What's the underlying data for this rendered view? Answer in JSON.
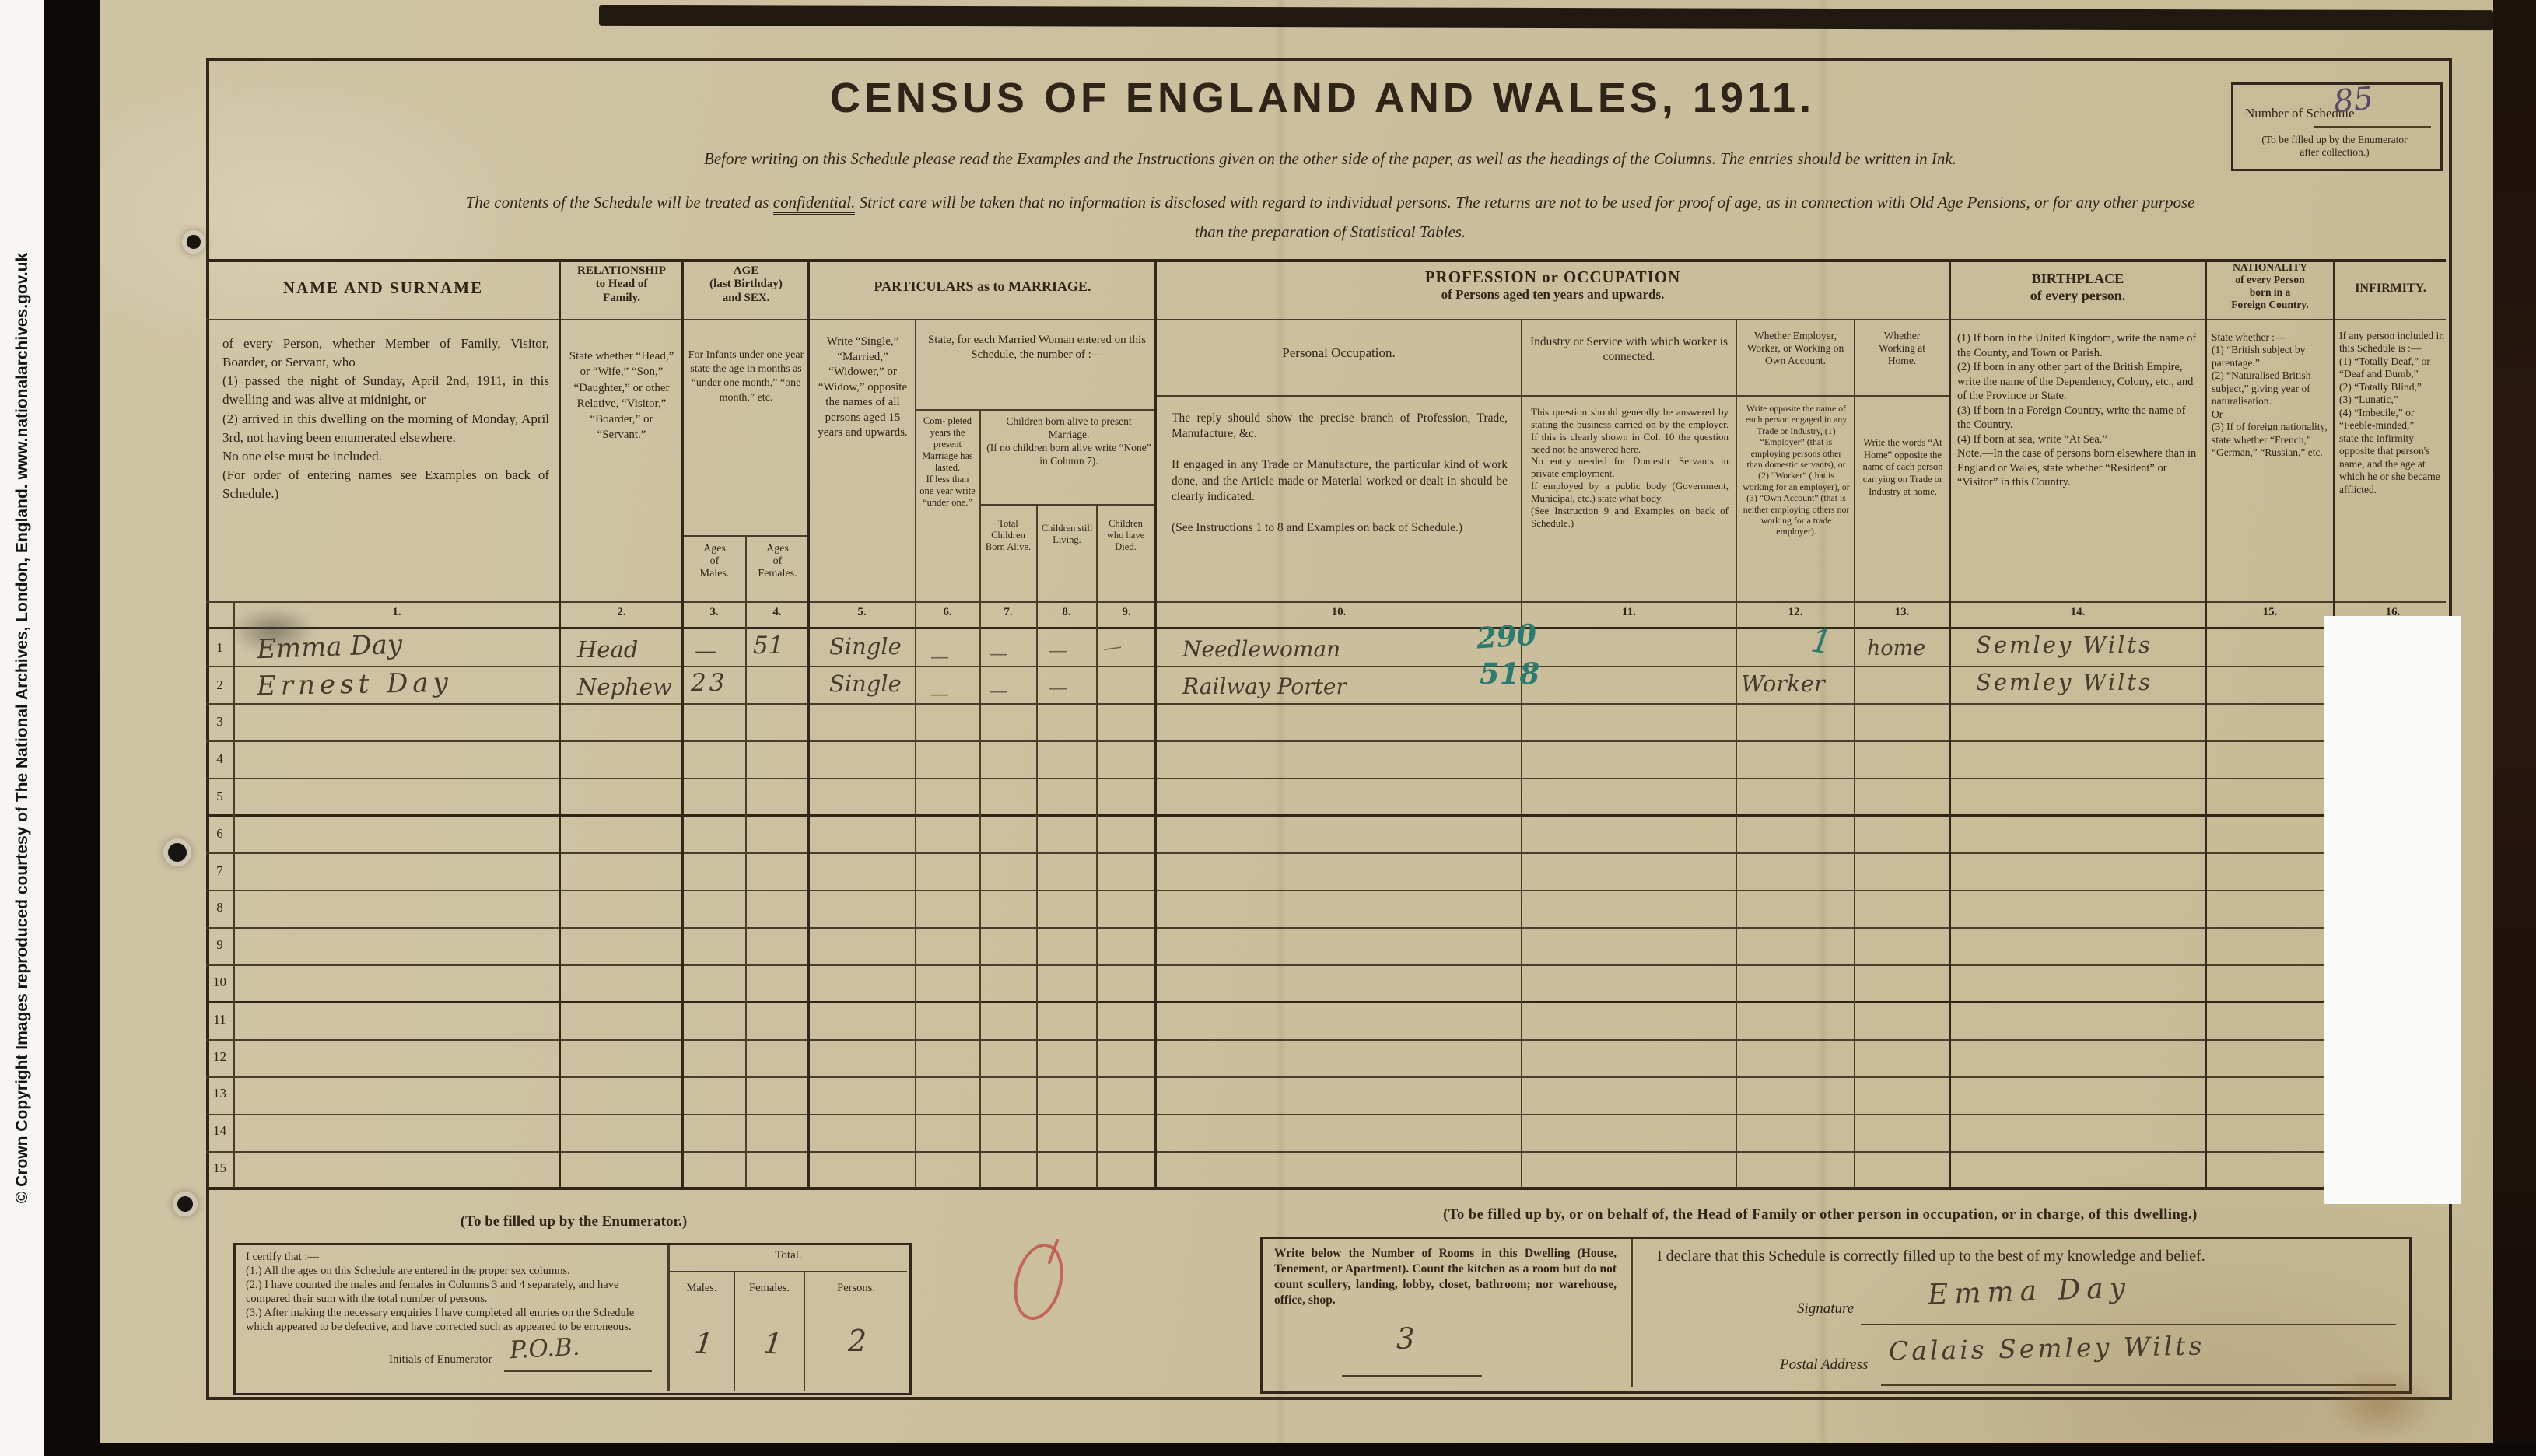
{
  "copyright_strip": "© Crown Copyright Images reproduced courtesy of The National Archives, London, England. www.nationalarchives.gov.uk",
  "header": {
    "title": "CENSUS  OF  ENGLAND  AND  WALES,  1911.",
    "instruction_line1": "Before writing on this Schedule please read the Examples and the Instructions given on the other side of the paper, as well as the headings of the Columns.   The entries should be written in Ink.",
    "confidential_pre": "The contents of the Schedule will be treated as ",
    "confidential_word": "confidential.",
    "confidential_post": "   Strict care will be taken that no information is disclosed with regard to individual persons.   The returns are not to be used for proof of age, as in connection with Old Age Pensions, or for any other purpose",
    "instruction_line3": "than the preparation of Statistical Tables.",
    "schedule_box": {
      "label": "Number of Schedule",
      "value": "85",
      "note": "(To be filled up by the Enumerator\nafter collection.)"
    }
  },
  "table": {
    "col_numbers": [
      "1.",
      "2.",
      "3.",
      "4.",
      "5.",
      "6.",
      "7.",
      "8.",
      "9.",
      "10.",
      "11.",
      "12.",
      "13.",
      "14.",
      "15.",
      "16."
    ],
    "row_numbers": [
      "1",
      "2",
      "3",
      "4",
      "5",
      "6",
      "7",
      "8",
      "9",
      "10",
      "11",
      "12",
      "13",
      "14",
      "15"
    ],
    "headers": {
      "name_title": "NAME AND SURNAME",
      "name_desc": "of every Person, whether Member of Family, Visitor, Boarder, or Servant, who\n(1) passed the night of Sunday, April 2nd, 1911, in this dwelling and was alive at midnight, or\n(2) arrived in this dwelling on the morning of Monday, April 3rd, not having been enumerated elsewhere.\nNo one else must be included.\n(For order of entering names see Examples on back of Schedule.)",
      "relationship_title": "RELATIONSHIP\nto Head of\nFamily.",
      "relationship_desc": "State whether “Head,” or “Wife,” “Son,” “Daughter,” or other Relative, “Visitor,” “Boarder,” or “Servant.”",
      "age_title": "AGE\n(last Birthday)\nand SEX.",
      "age_desc": "For Infants under one year state the age in months as “under one month,” “one month,” etc.",
      "age_males": "Ages\nof\nMales.",
      "age_females": "Ages\nof\nFemales.",
      "marriage_group": "PARTICULARS as to MARRIAGE.",
      "col5_desc": "Write “Single,” “Married,” “Widower,” or “Widow,” opposite the names of all persons aged 15 years and upwards.",
      "married_woman": "State, for each Married Woman entered on this Schedule, the number of :—",
      "col6_desc": "Com- pleted years the present Marriage has lasted.\nIf less than one year write “under one.”",
      "children_group": "Children born alive to present Marriage.\n(If no children born alive write “None” in Column 7).",
      "col7_desc": "Total Children Born Alive.",
      "col8_desc": "Children still Living.",
      "col9_desc": "Children who have Died.",
      "profession_group_1": "PROFESSION or OCCUPATION",
      "profession_group_2": "of Persons aged ten years and upwards.",
      "col10_title": "Personal Occupation.",
      "col10_desc": "The reply should show the precise branch of Profession, Trade, Manufacture, &c.\n\nIf engaged in any Trade or Manufacture, the particular kind of work done, and the Article made or Material worked or dealt in should be clearly indicated.\n\n(See Instructions 1 to 8 and Examples on back of Schedule.)",
      "col11_title": "Industry or Service with which worker is connected.",
      "col11_desc": "This question should generally be answered by stating the business carried on by the employer.  If this is clearly shown in Col. 10 the question need not be answered here.\nNo entry needed for Domestic Servants in private employment.\nIf employed by a public body (Government, Municipal, etc.) state what body.\n(See Instruction 9 and Examples on back of Schedule.)",
      "col12_title": "Whether Employer, Worker, or Working on Own Account.",
      "col12_desc": "Write opposite the name of each person engaged in any Trade or Industry, (1) “Employer” (that is employing persons other than domestic servants), or (2) “Worker” (that is working for an employer), or (3) “Own Account” (that is neither employing others nor working for a trade employer).",
      "col13_title": "Whether\nWorking at\nHome.",
      "col13_desc": "Write the words “At Home” opposite the name of each person carrying on Trade or Industry at home.",
      "birthplace_title": "BIRTHPLACE\nof every person.",
      "birthplace_desc": "(1) If born in the United Kingdom, write the name of the County, and Town or Parish.\n(2) If born in any other part of the British Empire, write the name of the Dependency, Colony, etc., and of the Province or State.\n(3) If born in a Foreign Country, write the name of the Country.\n(4) If born at sea, write “At Sea.”\nNote.—In the case of persons born elsewhere than in England or Wales, state whether “Resident” or “Visitor” in this Country.",
      "nationality_title": "NATIONALITY\nof every Person\nborn in a\nForeign Country.",
      "nationality_desc": "State whether :—\n(1) “British subject by parentage.”\n(2) “Naturalised British subject,” giving year of naturalisation.\nOr\n(3) If of foreign nationality, state whether “French,” “German,” “Russian,” etc.",
      "infirmity_title": "INFIRMITY.",
      "infirmity_desc": "If any person included in this Schedule is :—\n(1) “Totally Deaf,” or “Deaf and Dumb,”\n(2) “Totally Blind,”\n(3) “Lunatic,”\n(4) “Imbecile,” or “Feeble-minded,”\nstate the infirmity opposite that person's name, and the age at which he or she became afflicted."
    },
    "rows": [
      {
        "num": "1",
        "name": "Emma Day",
        "relationship": "Head",
        "age_male": "—",
        "age_female": "51",
        "marriage": "Single",
        "occupation": "Needlewoman",
        "code": "290",
        "employer_mark": "1",
        "at_home": "home",
        "birthplace": "Semley Wilts"
      },
      {
        "num": "2",
        "name": "Ernest Day",
        "relationship": "Nephew",
        "age_male": "23",
        "age_female": "",
        "marriage": "Single",
        "occupation": "Railway Porter",
        "code": "518",
        "employer_mark": "Worker",
        "at_home": "",
        "birthplace": "Semley Wilts"
      }
    ]
  },
  "footer": {
    "enumerator": {
      "heading": "(To be filled up by the Enumerator.)",
      "certify": "I certify that :—\n(1.) All the ages on this Schedule are entered in the proper sex columns.\n(2.) I have counted the males and females in Columns 3 and 4 separately, and have compared their sum with the total number of persons.\n(3.) After making the necessary enquiries I have completed all entries on the Schedule which appeared to be defective, and have corrected such as appeared to be erroneous.",
      "initials_label": "Initials of Enumerator",
      "initials_value": "P.O.B.",
      "total_label": "Total.",
      "males_label": "Males.",
      "females_label": "Females.",
      "persons_label": "Persons.",
      "males_value": "1",
      "females_value": "1",
      "persons_value": "2"
    },
    "householder": {
      "heading": "(To be filled up by, or on behalf of, the Head of Family or other person in occupation, or in charge, of this dwelling.)",
      "rooms_text": "Write below the Number of Rooms in this Dwelling (House, Tenement, or Apartment).  Count the kitchen as a room but do not count scullery, landing, lobby, closet, bathroom; nor warehouse, office, shop.",
      "rooms_value": "3",
      "declaration": "I declare that this Schedule is correctly filled up to the best of my knowledge and belief.",
      "signature_label": "Signature",
      "signature_value": "Emma Day",
      "postal_label": "Postal Address",
      "postal_value": "Calais   Semley   Wilts"
    }
  }
}
